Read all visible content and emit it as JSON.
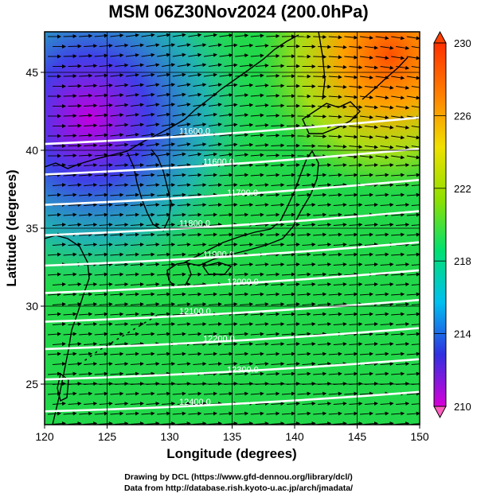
{
  "title": "MSM 06Z30Nov2024 (200.0hPa)",
  "x_axis": {
    "label": "Longitude (degrees)",
    "min": 120,
    "max": 150,
    "ticks": [
      "120",
      "125",
      "130",
      "135",
      "140",
      "145",
      "150"
    ]
  },
  "y_axis": {
    "label": "Latitude  (degrees)",
    "min": 22.4,
    "max": 47.6,
    "ticks": [
      "25",
      "30",
      "35",
      "40",
      "45"
    ]
  },
  "colorbar": {
    "min": 210,
    "max": 230,
    "ticks": [
      "210",
      "214",
      "218",
      "222",
      "226",
      "230"
    ],
    "colors": [
      "#d800d8",
      "#3030e0",
      "#00c0f0",
      "#00e070",
      "#90e000",
      "#f0e000",
      "#ff8000",
      "#ff3000"
    ]
  },
  "contours": [
    {
      "label": "11600.0",
      "lat": 42.0
    },
    {
      "label": "11600.0",
      "lat": 40.0
    },
    {
      "label": "11700.0",
      "lat": 38.0
    },
    {
      "label": "11800.0",
      "lat": 36.0
    },
    {
      "label": "11900.0",
      "lat": 34.0
    },
    {
      "label": "12000.0",
      "lat": 32.2
    },
    {
      "label": "12100.0",
      "lat": 30.3
    },
    {
      "label": "12200.0",
      "lat": 28.5
    },
    {
      "label": "12300.0",
      "lat": 26.5
    },
    {
      "label": "12400.0",
      "lat": 24.4
    }
  ],
  "credit_line1": "Drawing by DCL (https://www.gfd-dennou.org/library/dcl/)",
  "credit_line2": "Data from http://database.rish.kyoto-u.ac.jp/arch/jmadata/"
}
